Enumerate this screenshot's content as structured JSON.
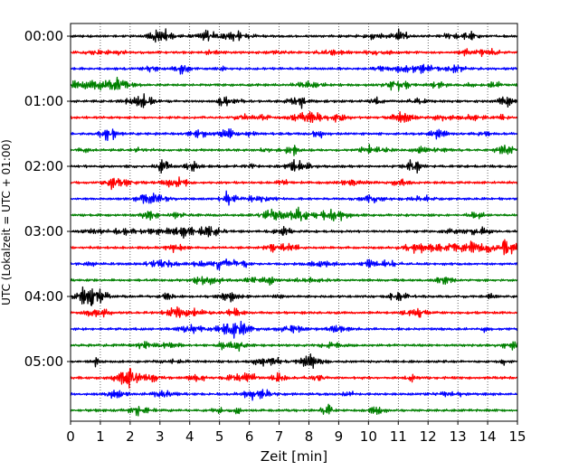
{
  "chart_data": {
    "type": "line",
    "title": "",
    "xlabel": "Zeit  [min]",
    "ylabel": "UTC (Lokalzeit = UTC + 01:00)",
    "xlim": [
      0,
      15
    ],
    "x_ticks": [
      "0",
      "1",
      "2",
      "3",
      "4",
      "5",
      "6",
      "7",
      "8",
      "9",
      "10",
      "11",
      "12",
      "13",
      "14",
      "15"
    ],
    "y_ticks": [
      "00:00",
      "01:00",
      "02:00",
      "03:00",
      "04:00",
      "05:00"
    ],
    "trace_interval_min": 15,
    "trace_count": 24,
    "trace_colors": [
      "#000000",
      "#ff0000",
      "#0000ff",
      "#008000"
    ],
    "grid": "vertical dotted lines at each minute",
    "events": [
      {
        "trace": 13,
        "x": [
          12.7,
          15.0
        ],
        "note": "larger-amplitude signal on red trace after 03:00"
      },
      {
        "trace": 14,
        "x": [
          4.9,
          6.0
        ],
        "note": "larger-amplitude burst on blue trace"
      }
    ]
  }
}
